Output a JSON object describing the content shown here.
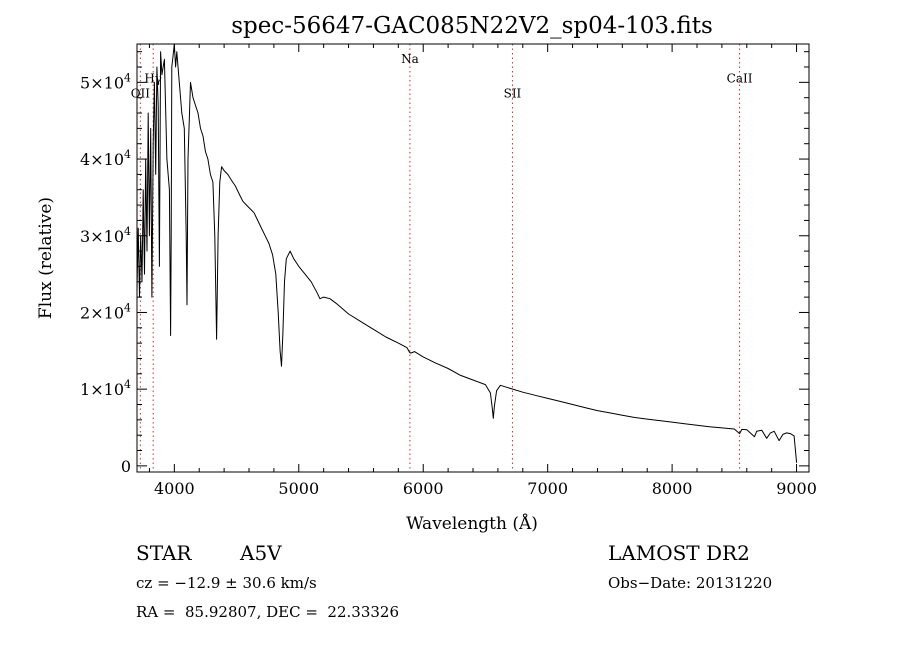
{
  "chart_data": {
    "type": "line",
    "title": "spec-56647-GAC085N22V2_sp04-103.fits",
    "xlabel": "Wavelength (Å)",
    "ylabel": "Flux (relative)",
    "xlim": [
      3700,
      9100
    ],
    "ylim": [
      -800,
      55000
    ],
    "x_ticks": [
      4000,
      5000,
      6000,
      7000,
      8000,
      9000
    ],
    "x_tick_labels": [
      "4000",
      "5000",
      "6000",
      "7000",
      "8000",
      "9000"
    ],
    "y_ticks": [
      0,
      10000,
      20000,
      30000,
      40000,
      50000
    ],
    "y_tick_labels": [
      {
        "mantissa": "0",
        "exp": ""
      },
      {
        "mantissa": "1×10",
        "exp": "4"
      },
      {
        "mantissa": "2×10",
        "exp": "4"
      },
      {
        "mantissa": "3×10",
        "exp": "4"
      },
      {
        "mantissa": "4×10",
        "exp": "4"
      },
      {
        "mantissa": "5×10",
        "exp": "4"
      }
    ],
    "lines": [
      {
        "label": "OII",
        "wavelength": 3727,
        "label_flux": 48000
      },
      {
        "label": "Hγ",
        "wavelength": 3830,
        "label_flux": 50000
      },
      {
        "label": "Na",
        "wavelength": 5893,
        "label_flux": 52500
      },
      {
        "label": "SII",
        "wavelength": 6717,
        "label_flux": 48000
      },
      {
        "label": "CaII",
        "wavelength": 8542,
        "label_flux": 50000
      }
    ],
    "series": [
      {
        "name": "spectrum",
        "points": [
          [
            3700,
            23000
          ],
          [
            3710,
            31000
          ],
          [
            3720,
            22000
          ],
          [
            3730,
            30000
          ],
          [
            3740,
            24000
          ],
          [
            3750,
            36000
          ],
          [
            3760,
            25000
          ],
          [
            3770,
            40000
          ],
          [
            3780,
            28000
          ],
          [
            3790,
            46000
          ],
          [
            3800,
            30000
          ],
          [
            3810,
            44000
          ],
          [
            3820,
            22000
          ],
          [
            3830,
            42000
          ],
          [
            3840,
            50000
          ],
          [
            3850,
            38000
          ],
          [
            3860,
            52000
          ],
          [
            3870,
            47000
          ],
          [
            3880,
            26000
          ],
          [
            3890,
            54000
          ],
          [
            3900,
            51000
          ],
          [
            3920,
            53000
          ],
          [
            3940,
            40000
          ],
          [
            3960,
            36000
          ],
          [
            3970,
            17000
          ],
          [
            3975,
            30000
          ],
          [
            3980,
            52000
          ],
          [
            3990,
            53500
          ],
          [
            4000,
            55000
          ],
          [
            4010,
            52000
          ],
          [
            4020,
            54000
          ],
          [
            4040,
            50000
          ],
          [
            4060,
            46000
          ],
          [
            4080,
            44000
          ],
          [
            4095,
            30000
          ],
          [
            4102,
            21000
          ],
          [
            4110,
            40000
          ],
          [
            4130,
            50000
          ],
          [
            4150,
            48000
          ],
          [
            4170,
            47000
          ],
          [
            4190,
            46000
          ],
          [
            4210,
            44000
          ],
          [
            4230,
            43000
          ],
          [
            4250,
            41000
          ],
          [
            4270,
            40000
          ],
          [
            4290,
            38000
          ],
          [
            4310,
            37000
          ],
          [
            4325,
            30000
          ],
          [
            4340,
            16500
          ],
          [
            4352,
            30000
          ],
          [
            4365,
            37000
          ],
          [
            4380,
            39000
          ],
          [
            4400,
            38500
          ],
          [
            4430,
            38000
          ],
          [
            4460,
            37200
          ],
          [
            4490,
            36500
          ],
          [
            4520,
            35500
          ],
          [
            4550,
            34500
          ],
          [
            4580,
            34000
          ],
          [
            4610,
            33500
          ],
          [
            4640,
            33000
          ],
          [
            4670,
            32000
          ],
          [
            4700,
            31000
          ],
          [
            4730,
            30000
          ],
          [
            4760,
            29000
          ],
          [
            4790,
            27500
          ],
          [
            4815,
            25000
          ],
          [
            4835,
            20000
          ],
          [
            4850,
            15000
          ],
          [
            4861,
            13000
          ],
          [
            4872,
            17000
          ],
          [
            4885,
            24000
          ],
          [
            4900,
            27000
          ],
          [
            4930,
            28000
          ],
          [
            4960,
            27000
          ],
          [
            5000,
            26000
          ],
          [
            5050,
            25000
          ],
          [
            5100,
            24000
          ],
          [
            5150,
            22500
          ],
          [
            5170,
            21800
          ],
          [
            5200,
            22000
          ],
          [
            5250,
            21800
          ],
          [
            5300,
            21200
          ],
          [
            5400,
            19800
          ],
          [
            5500,
            18800
          ],
          [
            5600,
            17800
          ],
          [
            5700,
            16800
          ],
          [
            5800,
            16000
          ],
          [
            5870,
            15400
          ],
          [
            5890,
            14800
          ],
          [
            5900,
            14700
          ],
          [
            5930,
            14900
          ],
          [
            6000,
            14200
          ],
          [
            6100,
            13400
          ],
          [
            6200,
            12700
          ],
          [
            6300,
            11800
          ],
          [
            6400,
            11200
          ],
          [
            6500,
            10600
          ],
          [
            6540,
            9500
          ],
          [
            6555,
            7500
          ],
          [
            6563,
            6200
          ],
          [
            6572,
            7800
          ],
          [
            6590,
            9800
          ],
          [
            6620,
            10500
          ],
          [
            6700,
            10100
          ],
          [
            6800,
            9600
          ],
          [
            6900,
            9200
          ],
          [
            7000,
            8800
          ],
          [
            7100,
            8400
          ],
          [
            7200,
            8000
          ],
          [
            7300,
            7600
          ],
          [
            7400,
            7200
          ],
          [
            7500,
            6900
          ],
          [
            7600,
            6600
          ],
          [
            7700,
            6300
          ],
          [
            7800,
            6100
          ],
          [
            7900,
            5900
          ],
          [
            8000,
            5700
          ],
          [
            8100,
            5500
          ],
          [
            8200,
            5300
          ],
          [
            8300,
            5100
          ],
          [
            8400,
            4950
          ],
          [
            8500,
            4800
          ],
          [
            8542,
            4200
          ],
          [
            8560,
            4750
          ],
          [
            8600,
            4700
          ],
          [
            8662,
            3800
          ],
          [
            8680,
            4500
          ],
          [
            8720,
            4650
          ],
          [
            8760,
            3600
          ],
          [
            8790,
            4300
          ],
          [
            8820,
            4500
          ],
          [
            8860,
            3300
          ],
          [
            8890,
            4100
          ],
          [
            8920,
            4300
          ],
          [
            8950,
            4200
          ],
          [
            8980,
            3900
          ],
          [
            9000,
            400
          ]
        ]
      }
    ]
  },
  "info": {
    "object_type": "STAR",
    "subclass": "A5V",
    "redshift": "cz = −12.9 ± 30.6 km/s",
    "coords": "RA =  85.92807, DEC =  22.33326",
    "survey": "LAMOST DR2",
    "obs_date": "Obs−Date: 20131220"
  }
}
